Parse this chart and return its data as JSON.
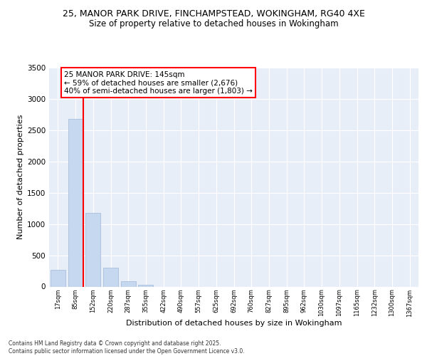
{
  "title1": "25, MANOR PARK DRIVE, FINCHAMPSTEAD, WOKINGHAM, RG40 4XE",
  "title2": "Size of property relative to detached houses in Wokingham",
  "xlabel": "Distribution of detached houses by size in Wokingham",
  "ylabel": "Number of detached properties",
  "categories": [
    "17sqm",
    "85sqm",
    "152sqm",
    "220sqm",
    "287sqm",
    "355sqm",
    "422sqm",
    "490sqm",
    "557sqm",
    "625sqm",
    "692sqm",
    "760sqm",
    "827sqm",
    "895sqm",
    "962sqm",
    "1030sqm",
    "1097sqm",
    "1165sqm",
    "1232sqm",
    "1300sqm",
    "1367sqm"
  ],
  "values": [
    270,
    2680,
    1180,
    300,
    90,
    30,
    0,
    0,
    0,
    0,
    0,
    0,
    0,
    0,
    0,
    0,
    0,
    0,
    0,
    0,
    0
  ],
  "bar_color": "#c5d8f0",
  "bar_edge_color": "#a0b8d8",
  "vline_bin": 1,
  "vline_color": "red",
  "annotation_text": "25 MANOR PARK DRIVE: 145sqm\n← 59% of detached houses are smaller (2,676)\n40% of semi-detached houses are larger (1,803) →",
  "annotation_box_color": "white",
  "annotation_box_edge": "red",
  "ylim": [
    0,
    3500
  ],
  "yticks": [
    0,
    500,
    1000,
    1500,
    2000,
    2500,
    3000,
    3500
  ],
  "bg_color": "#e8eef8",
  "footer1": "Contains HM Land Registry data © Crown copyright and database right 2025.",
  "footer2": "Contains public sector information licensed under the Open Government Licence v3.0."
}
